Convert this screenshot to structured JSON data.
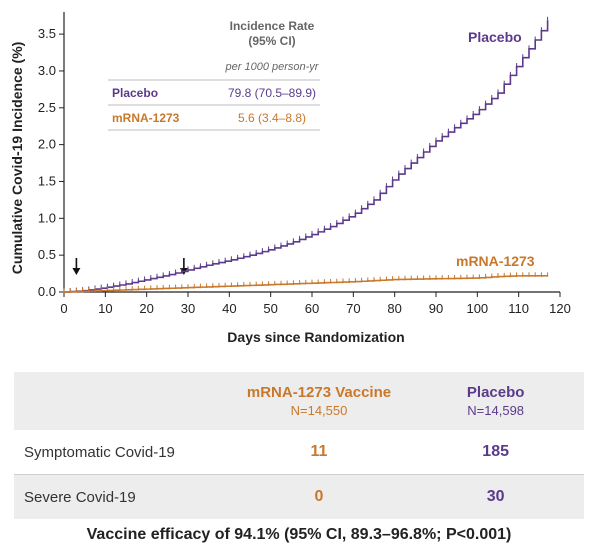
{
  "chart_data": {
    "type": "line",
    "xlabel": "Days since Randomization",
    "ylabel": "Cumulative Covid-19 Incidence (%)",
    "xlim": [
      0,
      120
    ],
    "ylim": [
      0,
      3.8
    ],
    "x_ticks": [
      0,
      10,
      20,
      30,
      40,
      50,
      60,
      70,
      80,
      90,
      100,
      110,
      120
    ],
    "y_ticks": [
      "0.0",
      "0.5",
      "1.0",
      "1.5",
      "2.0",
      "2.5",
      "3.0",
      "3.5"
    ],
    "x_tick_labels": [
      "0",
      "10",
      "20",
      "30",
      "40",
      "50",
      "60",
      "70",
      "80",
      "90",
      "100",
      "110",
      "120"
    ],
    "arrows_at_days": [
      3,
      29
    ],
    "series": [
      {
        "name": "Placebo",
        "color": "#5b3a8c",
        "x": [
          0,
          5,
          10,
          15,
          20,
          25,
          30,
          35,
          40,
          45,
          50,
          55,
          60,
          65,
          70,
          75,
          80,
          85,
          90,
          95,
          100,
          105,
          110,
          115,
          118
        ],
        "y": [
          0.0,
          0.02,
          0.06,
          0.11,
          0.17,
          0.23,
          0.3,
          0.37,
          0.43,
          0.5,
          0.58,
          0.67,
          0.78,
          0.9,
          1.05,
          1.25,
          1.55,
          1.8,
          2.05,
          2.25,
          2.45,
          2.7,
          3.1,
          3.5,
          3.78
        ]
      },
      {
        "name": "mRNA-1273",
        "color": "#c9782a",
        "x": [
          0,
          10,
          20,
          30,
          40,
          50,
          60,
          70,
          80,
          90,
          100,
          105,
          110,
          118
        ],
        "y": [
          0.0,
          0.02,
          0.04,
          0.06,
          0.08,
          0.1,
          0.12,
          0.14,
          0.17,
          0.18,
          0.19,
          0.21,
          0.22,
          0.22
        ]
      }
    ],
    "inset": {
      "header_line1": "Incidence Rate",
      "header_line2": "(95% CI)",
      "subheader": "per 1000 person-yr",
      "rows": [
        {
          "name": "Placebo",
          "value": "79.8 (70.5–89.9)",
          "color": "#5b3a8c"
        },
        {
          "name": "mRNA-1273",
          "value": "5.6 (3.4–8.8)",
          "color": "#c9782a"
        }
      ]
    }
  },
  "table": {
    "header_mrna_name": "mRNA-1273 Vaccine",
    "header_mrna_n": "N=14,550",
    "header_placebo_name": "Placebo",
    "header_placebo_n": "N=14,598",
    "rows": [
      {
        "label": "Symptomatic Covid-19",
        "mrna": "11",
        "placebo": "185"
      },
      {
        "label": "Severe Covid-19",
        "mrna": "0",
        "placebo": "30"
      }
    ]
  },
  "efficacy_text": "Vaccine efficacy of 94.1% (95% CI, 89.3–96.8%; P<0.001)"
}
